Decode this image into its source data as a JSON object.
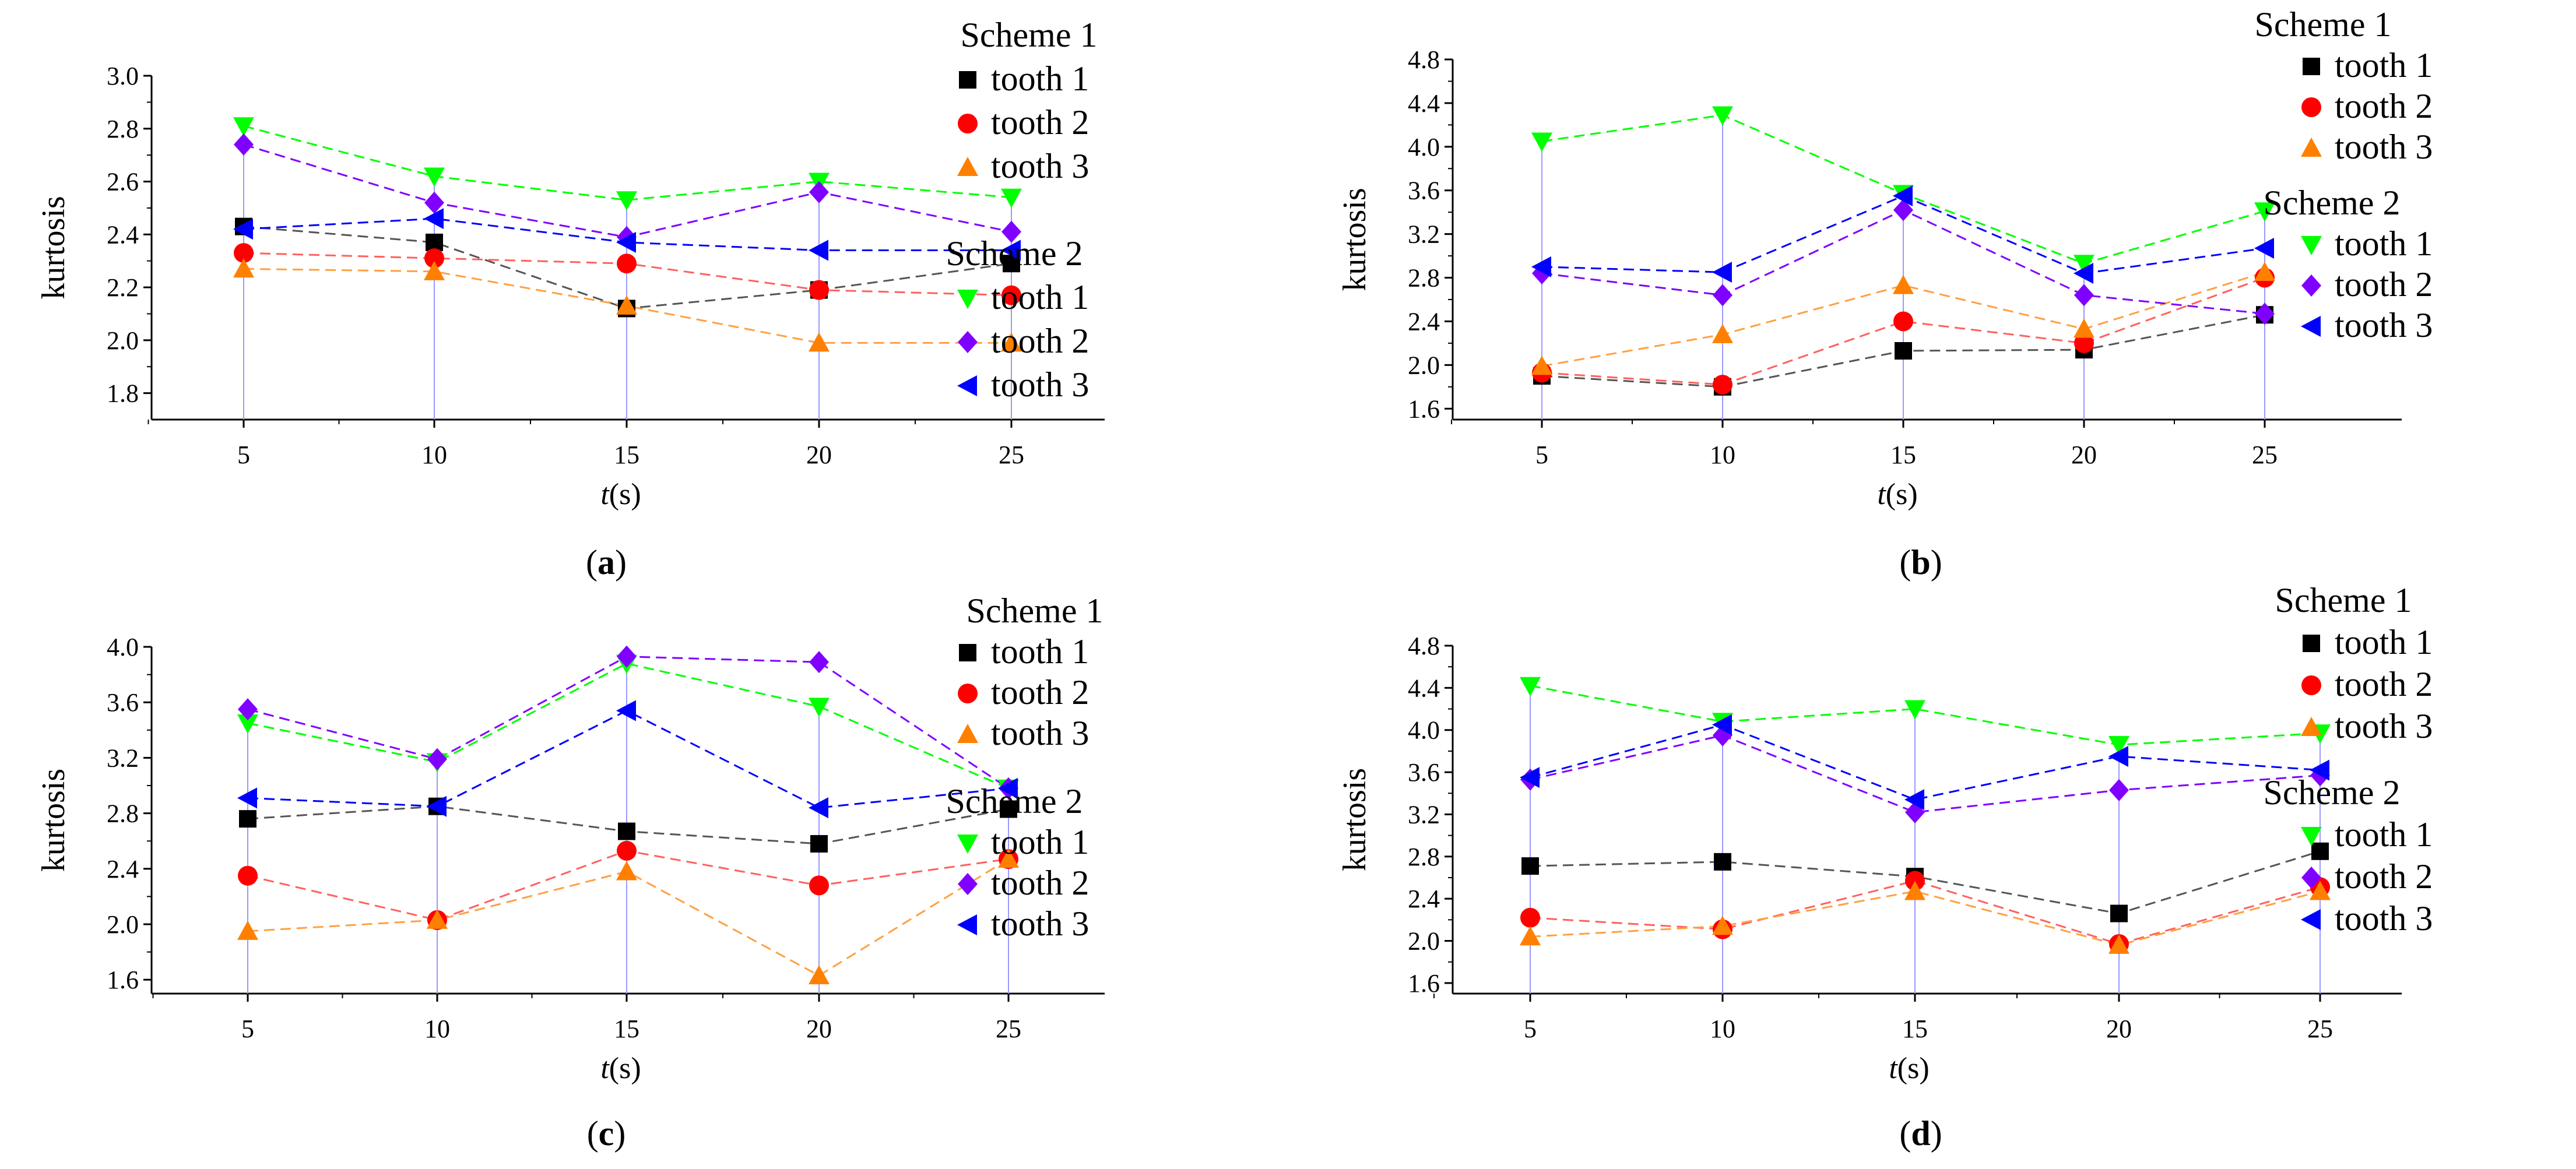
{
  "xlabel_italic": "t",
  "xlabel_unit": "(s)",
  "ylabel": "kurtosis",
  "colors": {
    "s1_tooth1": "#000000",
    "s1_tooth2": "#ff0000",
    "s1_tooth3": "#ff8000",
    "s2_tooth1": "#00ff00",
    "s2_tooth2": "#8000ff",
    "s2_tooth3": "#0000ff",
    "stem": "#9999ff",
    "dash_tooth1": "#555555",
    "dash_tooth2": "#ff6060",
    "dash_tooth3": "#ffa040",
    "dash_s2_tooth1": "#00ff00",
    "dash_s2_tooth2": "#8000ff",
    "dash_s2_tooth3": "#0000ff"
  },
  "chart_data": [
    {
      "id": "a",
      "type": "line",
      "caption": "a",
      "x": [
        5,
        10,
        15,
        20,
        25
      ],
      "xticks": [
        "5",
        "10",
        "15",
        "20",
        "25"
      ],
      "ylim": [
        1.7,
        3.0
      ],
      "yticks": [
        "1.8",
        "2.0",
        "2.2",
        "2.4",
        "2.6",
        "2.8",
        "3.0"
      ],
      "yticks_values": [
        1.8,
        2.0,
        2.2,
        2.4,
        2.6,
        2.8,
        3.0
      ],
      "legend": {
        "scheme1_title": "Scheme 1",
        "scheme2_title": "Scheme 2",
        "entries": [
          "tooth 1",
          "tooth 2",
          "tooth 3",
          "tooth 1",
          "tooth 2",
          "tooth 3"
        ]
      },
      "series": [
        {
          "name": "Scheme 1 tooth 1",
          "values": [
            2.43,
            2.37,
            2.12,
            2.19,
            2.29
          ]
        },
        {
          "name": "Scheme 1 tooth 2",
          "values": [
            2.33,
            2.31,
            2.29,
            2.19,
            2.17
          ]
        },
        {
          "name": "Scheme 1 tooth 3",
          "values": [
            2.27,
            2.26,
            2.13,
            1.99,
            1.99
          ]
        },
        {
          "name": "Scheme 2 tooth 1",
          "values": [
            2.81,
            2.62,
            2.53,
            2.6,
            2.54
          ]
        },
        {
          "name": "Scheme 2 tooth 2",
          "values": [
            2.74,
            2.52,
            2.39,
            2.56,
            2.41
          ]
        },
        {
          "name": "Scheme 2 tooth 3",
          "values": [
            2.42,
            2.46,
            2.37,
            2.34,
            2.34
          ]
        }
      ]
    },
    {
      "id": "b",
      "type": "line",
      "caption": "b",
      "x": [
        5,
        10,
        15,
        20,
        25
      ],
      "xticks": [
        "5",
        "10",
        "15",
        "20",
        "25"
      ],
      "ylim": [
        1.5,
        4.8
      ],
      "yticks": [
        "1.6",
        "2.0",
        "2.4",
        "2.8",
        "3.2",
        "3.6",
        "4.0",
        "4.4",
        "4.8"
      ],
      "yticks_values": [
        1.6,
        2.0,
        2.4,
        2.8,
        3.2,
        3.6,
        4.0,
        4.4,
        4.8
      ],
      "legend": {
        "scheme1_title": "Scheme 1",
        "scheme2_title": "Scheme 2",
        "entries": [
          "tooth 1",
          "tooth 2",
          "tooth 3",
          "tooth 1",
          "tooth 2",
          "tooth 3"
        ]
      },
      "series": [
        {
          "name": "Scheme 1 tooth 1",
          "values": [
            1.9,
            1.8,
            2.13,
            2.14,
            2.46
          ]
        },
        {
          "name": "Scheme 1 tooth 2",
          "values": [
            1.93,
            1.82,
            2.4,
            2.2,
            2.8
          ]
        },
        {
          "name": "Scheme 1 tooth 3",
          "values": [
            1.99,
            2.28,
            2.73,
            2.33,
            2.85
          ]
        },
        {
          "name": "Scheme 2 tooth 1",
          "values": [
            4.05,
            4.29,
            3.57,
            2.93,
            3.41
          ]
        },
        {
          "name": "Scheme 2 tooth 2",
          "values": [
            2.84,
            2.64,
            3.42,
            2.64,
            2.47
          ]
        },
        {
          "name": "Scheme 2 tooth 3",
          "values": [
            2.9,
            2.85,
            3.55,
            2.84,
            3.07
          ]
        }
      ]
    },
    {
      "id": "c",
      "type": "line",
      "caption": "c",
      "x": [
        5,
        10,
        15,
        20,
        25
      ],
      "xticks": [
        "5",
        "10",
        "15",
        "20",
        "25"
      ],
      "ylim": [
        1.5,
        4.0
      ],
      "yticks": [
        "1.6",
        "2.0",
        "2.4",
        "2.8",
        "3.2",
        "3.6",
        "4.0"
      ],
      "yticks_values": [
        1.6,
        2.0,
        2.4,
        2.8,
        3.2,
        3.6,
        4.0
      ],
      "legend": {
        "scheme1_title": "Scheme 1",
        "scheme2_title": "Scheme 2",
        "entries": [
          "tooth 1",
          "tooth 2",
          "tooth 3",
          "tooth 1",
          "tooth 2",
          "tooth 3"
        ]
      },
      "series": [
        {
          "name": "Scheme 1 tooth 1",
          "values": [
            2.76,
            2.85,
            2.67,
            2.58,
            2.83
          ]
        },
        {
          "name": "Scheme 1 tooth 2",
          "values": [
            2.35,
            2.03,
            2.53,
            2.28,
            2.47
          ]
        },
        {
          "name": "Scheme 1 tooth 3",
          "values": [
            1.95,
            2.03,
            2.38,
            1.63,
            2.47
          ]
        },
        {
          "name": "Scheme 2 tooth 1",
          "values": [
            3.45,
            3.17,
            3.88,
            3.57,
            2.98
          ]
        },
        {
          "name": "Scheme 2 tooth 2",
          "values": [
            3.55,
            3.19,
            3.93,
            3.89,
            2.98
          ]
        },
        {
          "name": "Scheme 2 tooth 3",
          "values": [
            2.91,
            2.85,
            3.54,
            2.84,
            2.98
          ]
        }
      ]
    },
    {
      "id": "d",
      "type": "line",
      "caption": "d",
      "x": [
        5,
        10,
        15,
        20,
        25
      ],
      "xticks": [
        "5",
        "10",
        "15",
        "20",
        "25"
      ],
      "ylim": [
        1.5,
        4.8
      ],
      "yticks": [
        "1.6",
        "2.0",
        "2.4",
        "2.8",
        "3.2",
        "3.6",
        "4.0",
        "4.4",
        "4.8"
      ],
      "yticks_values": [
        1.6,
        2.0,
        2.4,
        2.8,
        3.2,
        3.6,
        4.0,
        4.4,
        4.8
      ],
      "legend": {
        "scheme1_title": "Scheme 1",
        "scheme2_title": "Scheme 2",
        "entries": [
          "tooth 1",
          "tooth 2",
          "tooth 3",
          "tooth 1",
          "tooth 2",
          "tooth 3"
        ]
      },
      "series": [
        {
          "name": "Scheme 1 tooth 1",
          "values": [
            2.71,
            2.75,
            2.61,
            2.26,
            2.85
          ]
        },
        {
          "name": "Scheme 1 tooth 2",
          "values": [
            2.22,
            2.11,
            2.57,
            1.97,
            2.51
          ]
        },
        {
          "name": "Scheme 1 tooth 3",
          "values": [
            2.04,
            2.14,
            2.47,
            1.96,
            2.47
          ]
        },
        {
          "name": "Scheme 2 tooth 1",
          "values": [
            4.42,
            4.08,
            4.2,
            3.86,
            3.97
          ]
        },
        {
          "name": "Scheme 2 tooth 2",
          "values": [
            3.53,
            3.95,
            3.22,
            3.43,
            3.57
          ]
        },
        {
          "name": "Scheme 2 tooth 3",
          "values": [
            3.55,
            4.05,
            3.34,
            3.75,
            3.62
          ]
        }
      ]
    }
  ]
}
